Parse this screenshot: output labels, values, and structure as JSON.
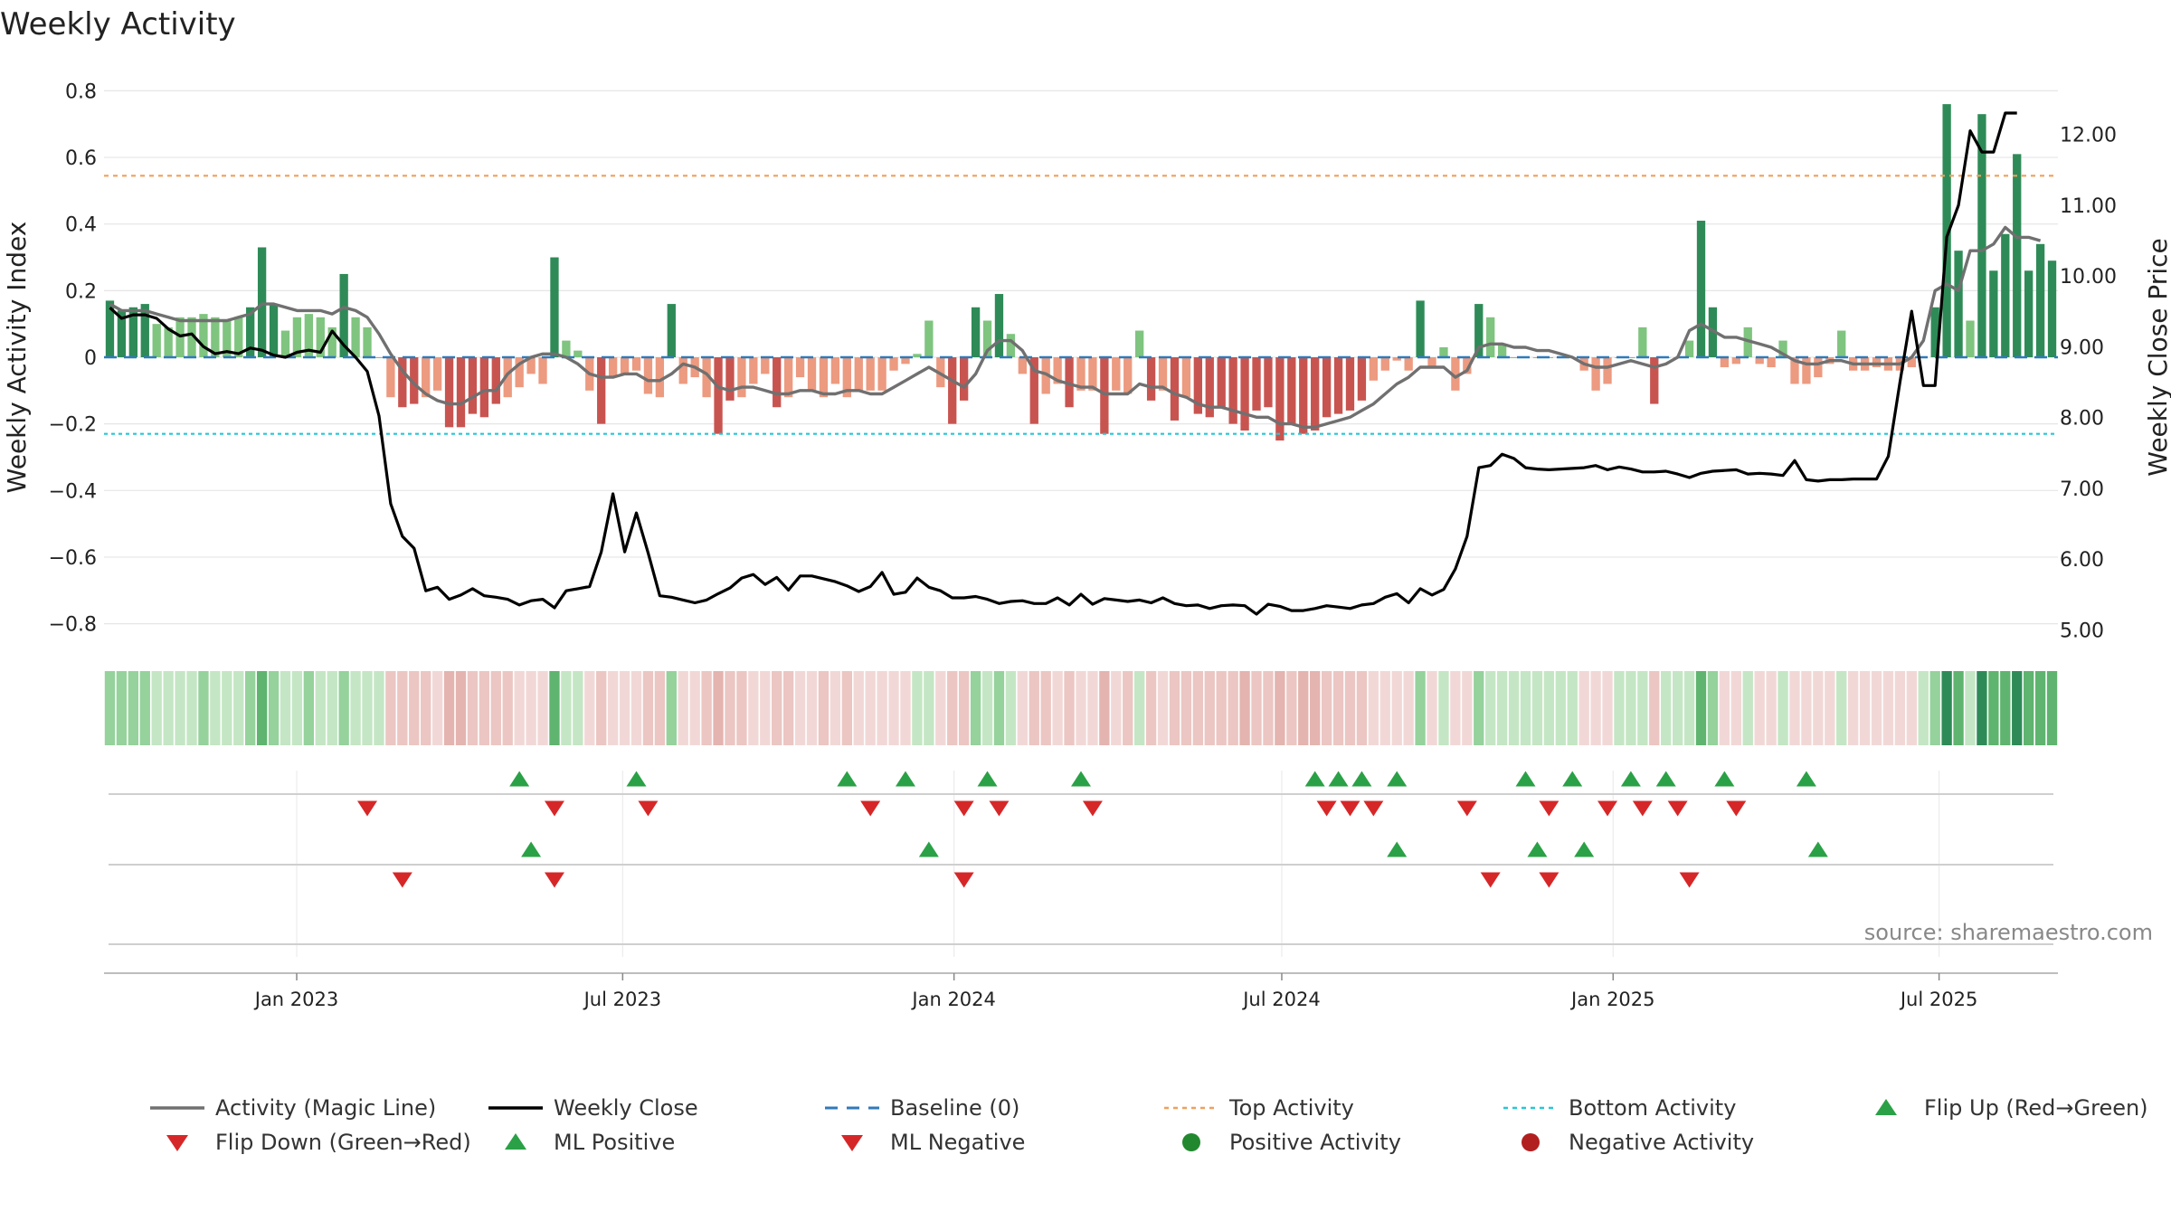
{
  "chart_data": {
    "type": "bar",
    "title": "Weekly Activity",
    "ylabel": "Weekly Activity Index",
    "y2label": "Weekly Close Price",
    "ylim": [
      -0.85,
      0.85
    ],
    "y2lim": [
      4.85,
      12.85
    ],
    "yticks": [
      "0.8",
      "0.6",
      "0.4",
      "0.2",
      "0",
      "−0.2",
      "−0.4",
      "−0.6",
      "−0.8"
    ],
    "y2ticks": [
      "12.00",
      "11.00",
      "10.00",
      "9.00",
      "8.00",
      "7.00",
      "6.00",
      "5.00"
    ],
    "top_activity": 0.545,
    "bottom_activity": -0.23,
    "baseline": 0,
    "x_range": [
      "2022-09-16",
      "2025-09-05"
    ],
    "date_ticks": [
      {
        "label": "Jan 2023",
        "date": "2023-01-01"
      },
      {
        "label": "Jul 2023",
        "date": "2023-07-01"
      },
      {
        "label": "Jan 2024",
        "date": "2024-01-01"
      },
      {
        "label": "Jul 2024",
        "date": "2024-07-01"
      },
      {
        "label": "Jan 2025",
        "date": "2025-01-01"
      },
      {
        "label": "Jul 2025",
        "date": "2025-07-01"
      }
    ],
    "series": [
      {
        "name": "Weekly Activity Index",
        "kind": "bar",
        "start_date": "2022-09-16",
        "interval_days": 7,
        "values": [
          0.17,
          0.14,
          0.15,
          0.16,
          0.1,
          0.09,
          0.12,
          0.12,
          0.13,
          0.12,
          0.11,
          0.12,
          0.15,
          0.33,
          0.16,
          0.08,
          0.12,
          0.13,
          0.12,
          0.09,
          0.25,
          0.12,
          0.09,
          0,
          -0.12,
          -0.15,
          -0.14,
          -0.12,
          -0.1,
          -0.21,
          -0.21,
          -0.17,
          -0.18,
          -0.14,
          -0.12,
          -0.09,
          -0.05,
          -0.08,
          0.3,
          0.05,
          0.02,
          -0.1,
          -0.2,
          -0.06,
          -0.05,
          -0.04,
          -0.11,
          -0.12,
          0.16,
          -0.08,
          -0.06,
          -0.12,
          -0.23,
          -0.13,
          -0.12,
          -0.08,
          -0.05,
          -0.15,
          -0.12,
          -0.06,
          -0.1,
          -0.12,
          -0.08,
          -0.12,
          -0.1,
          -0.1,
          -0.1,
          -0.04,
          -0.02,
          0.01,
          0.11,
          -0.09,
          -0.2,
          -0.13,
          0.15,
          0.11,
          0.19,
          0.07,
          -0.05,
          -0.2,
          -0.11,
          -0.08,
          -0.15,
          -0.1,
          -0.1,
          -0.23,
          -0.1,
          -0.11,
          0.08,
          -0.13,
          -0.1,
          -0.19,
          -0.12,
          -0.17,
          -0.18,
          -0.15,
          -0.2,
          -0.22,
          -0.16,
          -0.15,
          -0.25,
          -0.2,
          -0.23,
          -0.22,
          -0.18,
          -0.17,
          -0.16,
          -0.13,
          -0.07,
          -0.04,
          -0.01,
          -0.04,
          0.17,
          -0.03,
          0.03,
          -0.1,
          -0.05,
          0.16,
          0.12,
          0.04,
          0,
          0,
          0,
          0,
          0,
          0,
          -0.04,
          -0.1,
          -0.08,
          0,
          0,
          0.09,
          -0.14,
          0,
          0,
          0.05,
          0.41,
          0.15,
          -0.03,
          -0.02,
          0.09,
          -0.02,
          -0.03,
          0.05,
          -0.08,
          -0.08,
          -0.06,
          -0.02,
          0.08,
          -0.04,
          -0.04,
          -0.03,
          -0.04,
          -0.04,
          -0.03,
          0,
          0.15,
          0.76,
          0.32,
          0.11,
          0.73,
          0.26,
          0.37,
          0.61,
          0.26,
          0.34,
          0.29
        ]
      },
      {
        "name": "Activity (Magic Line)",
        "kind": "line",
        "color": "#707070",
        "start_date": "2022-09-16",
        "interval_days": 7,
        "values": [
          0.16,
          0.14,
          0.14,
          0.14,
          0.13,
          0.12,
          0.11,
          0.11,
          0.11,
          0.11,
          0.11,
          0.12,
          0.13,
          0.16,
          0.16,
          0.15,
          0.14,
          0.14,
          0.14,
          0.13,
          0.15,
          0.14,
          0.12,
          0.07,
          0.01,
          -0.04,
          -0.08,
          -0.11,
          -0.13,
          -0.14,
          -0.14,
          -0.12,
          -0.1,
          -0.1,
          -0.05,
          -0.02,
          0,
          0.01,
          0.01,
          0,
          -0.02,
          -0.05,
          -0.06,
          -0.06,
          -0.05,
          -0.05,
          -0.07,
          -0.07,
          -0.05,
          -0.02,
          -0.03,
          -0.05,
          -0.09,
          -0.1,
          -0.09,
          -0.09,
          -0.1,
          -0.11,
          -0.11,
          -0.1,
          -0.1,
          -0.11,
          -0.11,
          -0.1,
          -0.1,
          -0.11,
          -0.11,
          -0.09,
          -0.07,
          -0.05,
          -0.03,
          -0.05,
          -0.07,
          -0.09,
          -0.05,
          0.02,
          0.05,
          0.05,
          0.02,
          -0.04,
          -0.05,
          -0.07,
          -0.08,
          -0.09,
          -0.09,
          -0.11,
          -0.11,
          -0.11,
          -0.08,
          -0.09,
          -0.09,
          -0.11,
          -0.12,
          -0.14,
          -0.15,
          -0.15,
          -0.16,
          -0.17,
          -0.18,
          -0.18,
          -0.2,
          -0.2,
          -0.21,
          -0.21,
          -0.2,
          -0.19,
          -0.18,
          -0.16,
          -0.14,
          -0.11,
          -0.08,
          -0.06,
          -0.03,
          -0.03,
          -0.03,
          -0.06,
          -0.04,
          0.03,
          0.04,
          0.04,
          0.03,
          0.03,
          0.02,
          0.02,
          0.01,
          0,
          -0.02,
          -0.03,
          -0.03,
          -0.02,
          -0.01,
          -0.02,
          -0.03,
          -0.02,
          0,
          0.08,
          0.1,
          0.08,
          0.06,
          0.06,
          0.05,
          0.04,
          0.03,
          0.01,
          -0.01,
          -0.02,
          -0.02,
          -0.01,
          -0.01,
          -0.02,
          -0.02,
          -0.02,
          -0.02,
          -0.02,
          0,
          0.05,
          0.2,
          0.22,
          0.2,
          0.32,
          0.32,
          0.34,
          0.39,
          0.36,
          0.36,
          0.35
        ]
      },
      {
        "name": "Weekly Close",
        "kind": "line",
        "axis": "right",
        "color": "#000000",
        "start_date": "2022-09-16",
        "interval_days": 7,
        "values": [
          9.55,
          9.4,
          9.45,
          9.45,
          9.4,
          9.25,
          9.15,
          9.18,
          9.0,
          8.9,
          8.93,
          8.9,
          8.98,
          8.95,
          8.88,
          8.85,
          8.92,
          8.95,
          8.92,
          9.22,
          9.02,
          8.85,
          8.65,
          8.02,
          6.78,
          6.32,
          6.15,
          5.55,
          5.6,
          5.43,
          5.49,
          5.58,
          5.48,
          5.46,
          5.43,
          5.35,
          5.41,
          5.43,
          5.31,
          5.55,
          5.58,
          5.61,
          6.1,
          6.92,
          6.1,
          6.65,
          6.09,
          5.48,
          5.46,
          5.42,
          5.38,
          5.42,
          5.51,
          5.59,
          5.73,
          5.78,
          5.64,
          5.74,
          5.56,
          5.76,
          5.76,
          5.72,
          5.68,
          5.62,
          5.54,
          5.61,
          5.81,
          5.5,
          5.53,
          5.73,
          5.6,
          5.55,
          5.45,
          5.45,
          5.47,
          5.43,
          5.37,
          5.4,
          5.41,
          5.37,
          5.37,
          5.45,
          5.35,
          5.5,
          5.36,
          5.44,
          5.42,
          5.4,
          5.42,
          5.38,
          5.45,
          5.37,
          5.34,
          5.35,
          5.3,
          5.34,
          5.35,
          5.34,
          5.22,
          5.36,
          5.33,
          5.27,
          5.27,
          5.3,
          5.34,
          5.32,
          5.3,
          5.35,
          5.37,
          5.46,
          5.51,
          5.38,
          5.58,
          5.49,
          5.57,
          5.86,
          6.32,
          7.29,
          7.32,
          7.48,
          7.42,
          7.29,
          7.27,
          7.26,
          7.27,
          7.28,
          7.29,
          7.32,
          7.26,
          7.3,
          7.27,
          7.23,
          7.23,
          7.24,
          7.2,
          7.15,
          7.21,
          7.24,
          7.25,
          7.26,
          7.2,
          7.21,
          7.2,
          7.18,
          7.39,
          7.12,
          7.1,
          7.12,
          7.12,
          7.13,
          7.13,
          7.13,
          7.45,
          8.5,
          9.5,
          8.45,
          8.45,
          10.55,
          11.0,
          12.05,
          11.75,
          11.75,
          12.3,
          12.3
        ]
      },
      {
        "name": "Baseline (0)",
        "kind": "hline",
        "value": 0,
        "color": "#2f7ab9"
      },
      {
        "name": "Top Activity",
        "kind": "hline",
        "value": 0.545,
        "color": "#f0a05a"
      },
      {
        "name": "Bottom Activity",
        "kind": "hline",
        "value": -0.23,
        "color": "#26c6d8"
      }
    ],
    "markers": {
      "flip_up_weeks": [
        35,
        45,
        63,
        68,
        75,
        83,
        103,
        105,
        107,
        110,
        121,
        125,
        130,
        133,
        138,
        145
      ],
      "flip_down_weeks": [
        22,
        38,
        46,
        65,
        73,
        76,
        84,
        104,
        106,
        108,
        116,
        123,
        128,
        131,
        134,
        139
      ],
      "ml_positive_weeks": [
        36,
        70,
        110,
        122,
        126,
        146
      ],
      "ml_negative_weeks": [
        25,
        38,
        73,
        118,
        123,
        135
      ]
    },
    "legend": [
      {
        "label": "Activity (Magic Line)",
        "symbol": "line",
        "color": "#707070"
      },
      {
        "label": "Weekly Close",
        "symbol": "line",
        "color": "#000000"
      },
      {
        "label": "Baseline (0)",
        "symbol": "dashed",
        "color": "#2f7ab9"
      },
      {
        "label": "Top Activity",
        "symbol": "dotted",
        "color": "#f0a05a"
      },
      {
        "label": "Bottom Activity",
        "symbol": "dotted",
        "color": "#26c6d8"
      },
      {
        "label": "Flip Up (Red→Green)",
        "symbol": "triangle-up",
        "color": "#2aa146"
      },
      {
        "label": "Flip Down (Green→Red)",
        "symbol": "triangle-down",
        "color": "#d62728"
      },
      {
        "label": "ML Positive",
        "symbol": "triangle-up",
        "color": "#2aa146"
      },
      {
        "label": "ML Negative",
        "symbol": "triangle-down",
        "color": "#d62728"
      },
      {
        "label": "Positive Activity",
        "symbol": "circle",
        "color": "#22882f"
      },
      {
        "label": "Negative Activity",
        "symbol": "circle",
        "color": "#b21f1f"
      }
    ],
    "source": "source: sharemaestro.com"
  }
}
